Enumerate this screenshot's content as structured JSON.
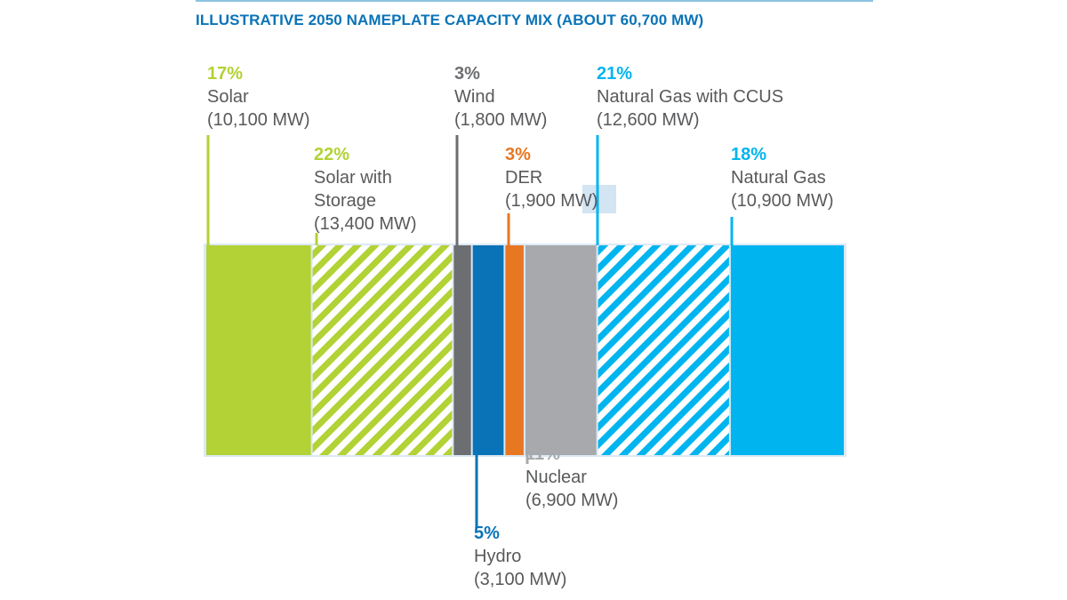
{
  "chart_data": {
    "type": "bar",
    "orientation": "stacked-horizontal",
    "title": "ILLUSTRATIVE 2050 NAMEPLATE CAPACITY MIX (ABOUT 60,700 MW)",
    "total_mw": 60700,
    "segments": [
      {
        "name": "Solar",
        "pct": "17%",
        "mw_label": "(10,100 MW)",
        "mw": 10100,
        "color": "#b2d235",
        "hatched": false
      },
      {
        "name": "Solar with Storage",
        "name_lines": [
          "Solar with",
          "Storage"
        ],
        "pct": "22%",
        "mw_label": "(13,400 MW)",
        "mw": 13400,
        "color": "#b2d235",
        "hatched": true
      },
      {
        "name": "Wind",
        "pct": "3%",
        "mw_label": "(1,800 MW)",
        "mw": 1800,
        "color": "#6d6e71",
        "hatched": false
      },
      {
        "name": "Hydro",
        "pct": "5%",
        "mw_label": "(3,100 MW)",
        "mw": 3100,
        "color": "#0a73b7",
        "hatched": false
      },
      {
        "name": "DER",
        "pct": "3%",
        "mw_label": "(1,900 MW)",
        "mw": 1900,
        "color": "#e87722",
        "hatched": false
      },
      {
        "name": "Nuclear",
        "pct": "11%",
        "mw_label": "(6,900 MW)",
        "mw": 6900,
        "color": "#a7a9ac",
        "hatched": false
      },
      {
        "name": "Natural Gas with CCUS",
        "pct": "21%",
        "mw_label": "(12,600 MW)",
        "mw": 12600,
        "color": "#00b5ef",
        "hatched": true
      },
      {
        "name": "Natural Gas",
        "pct": "18%",
        "mw_label": "(10,900 MW)",
        "mw": 10900,
        "color": "#00b5ef",
        "hatched": false
      }
    ],
    "border_color": "#dce9f5"
  }
}
